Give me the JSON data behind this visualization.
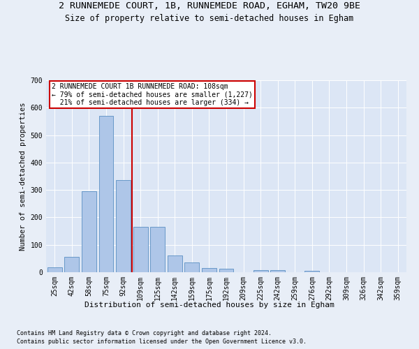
{
  "title": "2 RUNNEMEDE COURT, 1B, RUNNEMEDE ROAD, EGHAM, TW20 9BE",
  "subtitle": "Size of property relative to semi-detached houses in Egham",
  "xlabel": "Distribution of semi-detached houses by size in Egham",
  "ylabel": "Number of semi-detached properties",
  "footnote1": "Contains HM Land Registry data © Crown copyright and database right 2024.",
  "footnote2": "Contains public sector information licensed under the Open Government Licence v3.0.",
  "bar_labels": [
    "25sqm",
    "42sqm",
    "58sqm",
    "75sqm",
    "92sqm",
    "109sqm",
    "125sqm",
    "142sqm",
    "159sqm",
    "175sqm",
    "192sqm",
    "209sqm",
    "225sqm",
    "242sqm",
    "259sqm",
    "276sqm",
    "292sqm",
    "309sqm",
    "326sqm",
    "342sqm",
    "359sqm"
  ],
  "bar_values": [
    18,
    55,
    295,
    570,
    335,
    165,
    165,
    60,
    35,
    15,
    13,
    0,
    8,
    8,
    0,
    5,
    0,
    0,
    0,
    0,
    0
  ],
  "bar_color": "#aec6e8",
  "bar_edge_color": "#5a8fc2",
  "ylim": [
    0,
    700
  ],
  "yticks": [
    0,
    100,
    200,
    300,
    400,
    500,
    600,
    700
  ],
  "marker_label": "2 RUNNEMEDE COURT 1B RUNNEMEDE ROAD: 108sqm",
  "marker_line1": "← 79% of semi-detached houses are smaller (1,227)",
  "marker_line2": "21% of semi-detached houses are larger (334) →",
  "marker_color": "#cc0000",
  "bg_color": "#e8eef7",
  "plot_bg_color": "#dce6f5",
  "grid_color": "#ffffff",
  "title_fontsize": 9.5,
  "subtitle_fontsize": 8.5,
  "xlabel_fontsize": 8,
  "ylabel_fontsize": 7.5,
  "tick_fontsize": 7,
  "footnote_fontsize": 6,
  "annot_fontsize": 7
}
